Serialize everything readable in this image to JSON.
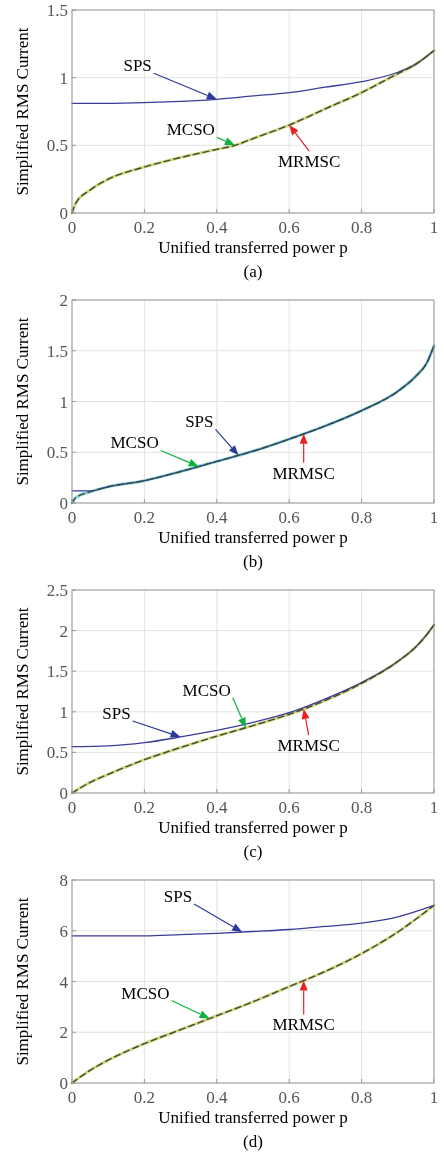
{
  "chart_data": [
    {
      "type": "line",
      "title": "(a)",
      "xlabel": "Unified transferred power p",
      "ylabel": "Simplified RMS Current",
      "xlim": [
        0,
        1
      ],
      "xticks": [
        0,
        0.2,
        0.4,
        0.6,
        0.8,
        1
      ],
      "ylim": [
        0,
        1.5
      ],
      "yticks": [
        0,
        0.5,
        1,
        1.5
      ],
      "grid": true,
      "series": [
        {
          "name": "SPS",
          "color": "#3b3b9a",
          "line_style": "solid",
          "x": [
            0,
            0.1,
            0.2,
            0.3,
            0.4,
            0.5,
            0.6,
            0.7,
            0.8,
            0.9,
            0.95,
            1
          ],
          "values": [
            0.81,
            0.81,
            0.815,
            0.825,
            0.84,
            0.865,
            0.89,
            0.93,
            0.97,
            1.04,
            1.1,
            1.2
          ]
        },
        {
          "name": "MCSO",
          "color": "#d8d880",
          "line_style": "solid",
          "x": [
            0,
            0.01,
            0.05,
            0.1,
            0.2,
            0.3,
            0.4,
            0.45,
            0.5,
            0.6,
            0.7,
            0.8,
            0.9,
            0.95,
            1
          ],
          "values": [
            0,
            0.07,
            0.17,
            0.25,
            0.34,
            0.41,
            0.47,
            0.5,
            0.55,
            0.65,
            0.77,
            0.89,
            1.03,
            1.1,
            1.2
          ]
        },
        {
          "name": "MRMSC",
          "color": "#3a4a3a",
          "line_style": "dashed",
          "x": [
            0,
            0.01,
            0.05,
            0.1,
            0.2,
            0.3,
            0.4,
            0.45,
            0.5,
            0.6,
            0.7,
            0.8,
            0.9,
            0.95,
            1
          ],
          "values": [
            0,
            0.07,
            0.17,
            0.25,
            0.34,
            0.41,
            0.47,
            0.5,
            0.55,
            0.65,
            0.77,
            0.89,
            1.03,
            1.1,
            1.2
          ]
        }
      ]
    },
    {
      "type": "line",
      "title": "(b)",
      "xlabel": "Unified transferred power p",
      "ylabel": "Simplified RMS Current",
      "xlim": [
        0,
        1
      ],
      "xticks": [
        0,
        0.2,
        0.4,
        0.6,
        0.8,
        1
      ],
      "ylim": [
        0,
        2
      ],
      "yticks": [
        0,
        0.5,
        1,
        1.5,
        2
      ],
      "grid": true,
      "series": [
        {
          "name": "SPS",
          "color": "#3b3b9a",
          "line_style": "solid",
          "x": [
            0,
            0.05,
            0.1,
            0.2,
            0.3,
            0.4,
            0.5,
            0.6,
            0.7,
            0.8,
            0.9,
            0.95,
            0.98,
            1
          ],
          "values": [
            0.12,
            0.12,
            0.16,
            0.22,
            0.31,
            0.41,
            0.51,
            0.63,
            0.76,
            0.91,
            1.1,
            1.25,
            1.38,
            1.55
          ]
        },
        {
          "name": "MCSO",
          "color": "#80d8d8",
          "line_style": "solid",
          "x": [
            0,
            0.01,
            0.05,
            0.1,
            0.2,
            0.3,
            0.4,
            0.5,
            0.6,
            0.7,
            0.8,
            0.9,
            0.95,
            0.98,
            1
          ],
          "values": [
            0,
            0.05,
            0.11,
            0.16,
            0.22,
            0.31,
            0.41,
            0.51,
            0.63,
            0.76,
            0.91,
            1.1,
            1.25,
            1.38,
            1.55
          ]
        },
        {
          "name": "MRMSC",
          "color": "#3a4a3a",
          "line_style": "dashed",
          "x": [
            0,
            0.01,
            0.05,
            0.1,
            0.2,
            0.3,
            0.4,
            0.5,
            0.6,
            0.7,
            0.8,
            0.9,
            0.95,
            0.98,
            1
          ],
          "values": [
            0,
            0.05,
            0.11,
            0.16,
            0.22,
            0.31,
            0.41,
            0.51,
            0.63,
            0.76,
            0.91,
            1.1,
            1.25,
            1.38,
            1.55
          ]
        }
      ]
    },
    {
      "type": "line",
      "title": "(c)",
      "xlabel": "Unified transferred power p",
      "ylabel": "Simplified RMS Current",
      "xlim": [
        0,
        1
      ],
      "xticks": [
        0,
        0.2,
        0.4,
        0.6,
        0.8,
        1
      ],
      "ylim": [
        0,
        2.5
      ],
      "yticks": [
        0,
        0.5,
        1,
        1.5,
        2,
        2.5
      ],
      "grid": true,
      "series": [
        {
          "name": "SPS",
          "color": "#3b3b9a",
          "line_style": "solid",
          "x": [
            0,
            0.1,
            0.2,
            0.3,
            0.4,
            0.5,
            0.6,
            0.7,
            0.8,
            0.9,
            0.95,
            0.98,
            1
          ],
          "values": [
            0.57,
            0.58,
            0.62,
            0.69,
            0.77,
            0.87,
            0.99,
            1.16,
            1.36,
            1.62,
            1.8,
            1.95,
            2.07
          ]
        },
        {
          "name": "MCSO",
          "color": "#d8d880",
          "line_style": "solid",
          "x": [
            0,
            0.05,
            0.1,
            0.2,
            0.3,
            0.4,
            0.5,
            0.6,
            0.65,
            0.7,
            0.8,
            0.9,
            0.95,
            0.98,
            1
          ],
          "values": [
            0,
            0.13,
            0.23,
            0.41,
            0.56,
            0.7,
            0.83,
            0.97,
            1.05,
            1.14,
            1.35,
            1.62,
            1.8,
            1.95,
            2.07
          ]
        },
        {
          "name": "MRMSC",
          "color": "#3a4a3a",
          "line_style": "dashed",
          "x": [
            0,
            0.05,
            0.1,
            0.2,
            0.3,
            0.4,
            0.5,
            0.6,
            0.65,
            0.7,
            0.8,
            0.9,
            0.95,
            0.98,
            1
          ],
          "values": [
            0,
            0.13,
            0.23,
            0.41,
            0.56,
            0.7,
            0.83,
            0.97,
            1.05,
            1.14,
            1.35,
            1.62,
            1.8,
            1.95,
            2.07
          ]
        }
      ]
    },
    {
      "type": "line",
      "title": "(d)",
      "xlabel": "Unified transferred power p",
      "ylabel": "Simplified RMS Current",
      "xlim": [
        0,
        1
      ],
      "xticks": [
        0,
        0.2,
        0.4,
        0.6,
        0.8,
        1
      ],
      "ylim": [
        0,
        8
      ],
      "yticks": [
        0,
        2,
        4,
        6,
        8
      ],
      "grid": true,
      "series": [
        {
          "name": "SPS",
          "color": "#3b3b9a",
          "line_style": "solid",
          "x": [
            0,
            0.2,
            0.3,
            0.4,
            0.5,
            0.6,
            0.7,
            0.8,
            0.9,
            1
          ],
          "values": [
            5.8,
            5.8,
            5.85,
            5.9,
            5.97,
            6.05,
            6.17,
            6.3,
            6.55,
            7
          ]
        },
        {
          "name": "MCSO",
          "color": "#d8d880",
          "line_style": "solid",
          "x": [
            0,
            0.05,
            0.1,
            0.2,
            0.3,
            0.4,
            0.5,
            0.6,
            0.7,
            0.8,
            0.9,
            1
          ],
          "values": [
            0,
            0.5,
            0.9,
            1.55,
            2.1,
            2.65,
            3.2,
            3.8,
            4.4,
            5.1,
            5.95,
            7
          ]
        },
        {
          "name": "MRMSC",
          "color": "#3a4a3a",
          "line_style": "dashed",
          "x": [
            0,
            0.05,
            0.1,
            0.2,
            0.3,
            0.4,
            0.5,
            0.6,
            0.7,
            0.8,
            0.9,
            1
          ],
          "values": [
            0,
            0.5,
            0.9,
            1.55,
            2.1,
            2.65,
            3.2,
            3.8,
            4.4,
            5.1,
            5.95,
            7
          ]
        }
      ]
    }
  ]
}
